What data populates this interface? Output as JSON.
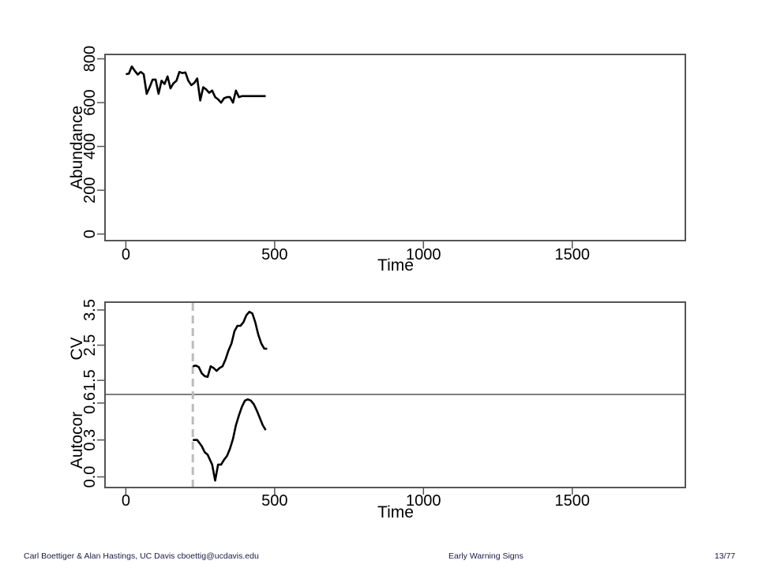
{
  "chart_data": [
    {
      "type": "line",
      "xlabel": "Time",
      "ylabel": "Abundance",
      "xlim": [
        -70,
        1880
      ],
      "ylim": [
        -30,
        820
      ],
      "x_ticks": [
        0,
        500,
        1000,
        1500
      ],
      "y_ticks": [
        0,
        200,
        400,
        600,
        800
      ],
      "series": [
        {
          "x": [
            0,
            10,
            20,
            30,
            40,
            50,
            60,
            70,
            80,
            90,
            100,
            110,
            120,
            130,
            140,
            150,
            160,
            170,
            180,
            190,
            200,
            210,
            220,
            230,
            240,
            250,
            260,
            270,
            280,
            290,
            300,
            310,
            320,
            330,
            340,
            350,
            360,
            370,
            380,
            390,
            400,
            410,
            420,
            430,
            440,
            450,
            460,
            470
          ],
          "y": [
            730,
            732,
            765,
            745,
            728,
            740,
            730,
            640,
            670,
            705,
            705,
            640,
            700,
            685,
            720,
            665,
            688,
            700,
            740,
            735,
            738,
            700,
            680,
            690,
            710,
            610,
            670,
            660,
            645,
            655,
            625,
            615,
            600,
            620,
            625,
            625,
            600,
            655,
            625,
            630,
            630,
            630,
            630,
            630,
            630,
            630,
            630,
            630
          ]
        }
      ]
    },
    {
      "type": "line",
      "ylabel": "CV",
      "ylim": [
        1.1,
        3.7
      ],
      "y_ticks": [
        1.5,
        2.5,
        3.5
      ],
      "threshold_x": 225,
      "series": [
        {
          "x": [
            225,
            235,
            245,
            255,
            265,
            275,
            285,
            295,
            305,
            315,
            325,
            335,
            345,
            355,
            365,
            375,
            385,
            395,
            405,
            415,
            425,
            435,
            445,
            455,
            465,
            475
          ],
          "y": [
            1.9,
            1.92,
            1.88,
            1.7,
            1.62,
            1.6,
            1.9,
            1.85,
            1.77,
            1.85,
            1.9,
            2.1,
            2.35,
            2.55,
            2.9,
            3.05,
            3.05,
            3.15,
            3.35,
            3.45,
            3.4,
            3.15,
            2.8,
            2.55,
            2.4,
            2.4
          ]
        }
      ]
    },
    {
      "type": "line",
      "xlabel": "Time",
      "ylabel": "Autocor",
      "xlim": [
        -70,
        1880
      ],
      "ylim": [
        -0.08,
        0.67
      ],
      "x_ticks": [
        0,
        500,
        1000,
        1500
      ],
      "y_ticks": [
        0.0,
        0.3,
        0.6
      ],
      "threshold_x": 225,
      "series": [
        {
          "x": [
            225,
            240,
            255,
            265,
            275,
            290,
            300,
            310,
            320,
            330,
            340,
            350,
            360,
            370,
            380,
            390,
            400,
            410,
            420,
            430,
            440,
            450,
            460,
            470
          ],
          "y": [
            0.3,
            0.3,
            0.25,
            0.2,
            0.18,
            0.1,
            -0.03,
            0.1,
            0.1,
            0.14,
            0.17,
            0.23,
            0.31,
            0.42,
            0.5,
            0.57,
            0.62,
            0.63,
            0.62,
            0.59,
            0.54,
            0.48,
            0.42,
            0.38
          ]
        }
      ]
    }
  ],
  "footer": {
    "left": "Carl Boettiger & Alan Hastings, UC Davis cboettig@ucdavis.edu",
    "center": "Early Warning Signs",
    "right": "13/77"
  }
}
